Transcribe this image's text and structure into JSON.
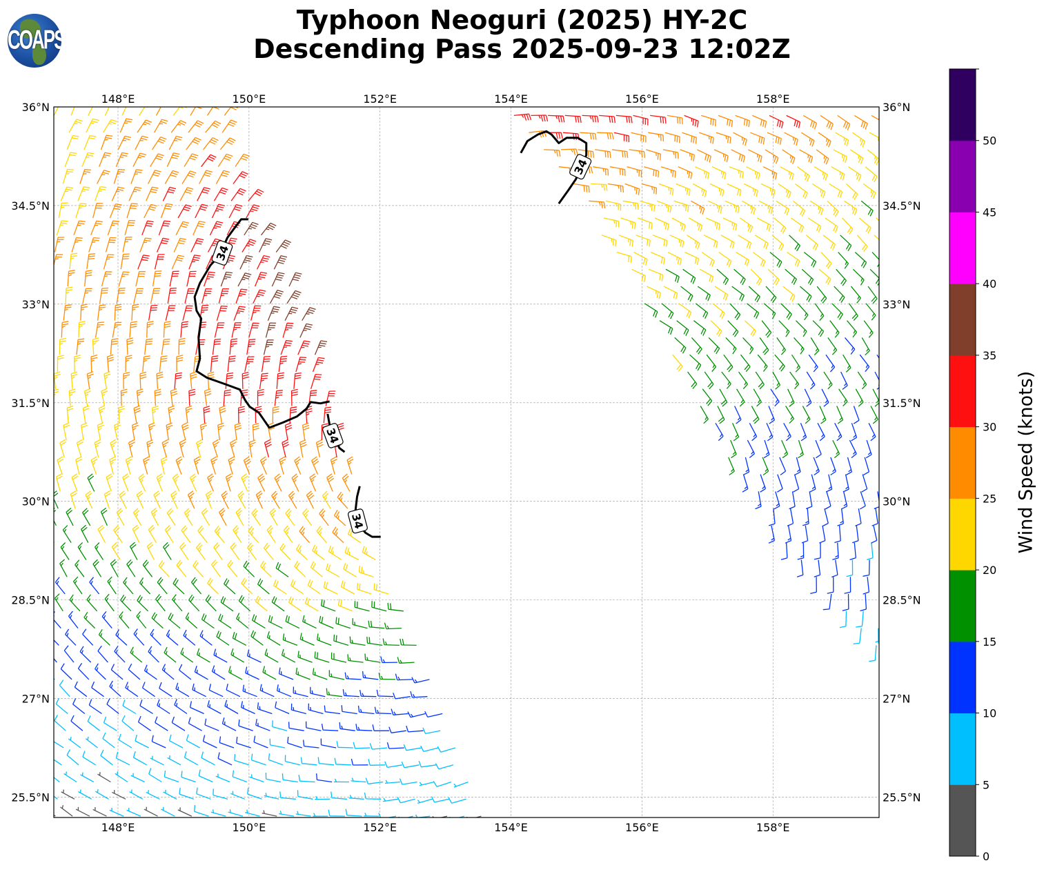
{
  "header": {
    "title_line1": "Typhoon Neoguri (2025) HY-2C",
    "title_line2": "Descending Pass 2025-09-23 12:02Z",
    "logo_text": "COAPS"
  },
  "chart_data": {
    "type": "wind-barb-map",
    "title": "Typhoon Neoguri (2025) HY-2C Descending Pass 2025-09-23 12:02Z",
    "xlim": [
      147.02,
      159.62
    ],
    "ylim": [
      25.19,
      36.0
    ],
    "grid": true,
    "x_ticks": [
      {
        "value": 148,
        "label": "148°E"
      },
      {
        "value": 150,
        "label": "150°E"
      },
      {
        "value": 152,
        "label": "152°E"
      },
      {
        "value": 154,
        "label": "154°E"
      },
      {
        "value": 156,
        "label": "156°E"
      },
      {
        "value": 158,
        "label": "158°E"
      }
    ],
    "y_ticks": [
      {
        "value": 36,
        "label": "36°N"
      },
      {
        "value": 34.5,
        "label": "34.5°N"
      },
      {
        "value": 33,
        "label": "33°N"
      },
      {
        "value": 31.5,
        "label": "31.5°N"
      },
      {
        "value": 30,
        "label": "30°N"
      },
      {
        "value": 28.5,
        "label": "28.5°N"
      },
      {
        "value": 27,
        "label": "27°N"
      },
      {
        "value": 25.5,
        "label": "25.5°N"
      }
    ],
    "colorbar": {
      "label": "Wind Speed (knots)",
      "bounds": [
        0,
        5,
        10,
        15,
        20,
        25,
        30,
        35,
        40,
        45,
        50,
        55
      ],
      "tick_labels": [
        "0",
        "5",
        "10",
        "15",
        "20",
        "25",
        "30",
        "35",
        "40",
        "45",
        "50"
      ],
      "colors": [
        "#555555",
        "#00bfff",
        "#0033ff",
        "#009000",
        "#ffd700",
        "#ff8c00",
        "#ff1010",
        "#7f3f2a",
        "#ff00ff",
        "#8800b0",
        "#2f0060"
      ]
    },
    "swaths": [
      {
        "name": "west-swath",
        "polygon": [
          [
            147.0,
            36.0
          ],
          [
            149.6,
            36.0
          ],
          [
            150.1,
            34.5
          ],
          [
            150.8,
            33.0
          ],
          [
            151.25,
            31.5
          ],
          [
            151.7,
            30.0
          ],
          [
            152.3,
            28.5
          ],
          [
            152.9,
            27.0
          ],
          [
            153.5,
            25.7
          ],
          [
            153.6,
            25.19
          ],
          [
            147.0,
            25.19
          ]
        ],
        "speed_model": {
          "peak": 40,
          "center": [
            151.3,
            33.3
          ],
          "decay": 3.6,
          "lat_weight": 1.15
        },
        "circulation_center": [
          153.2,
          30.5
        ]
      },
      {
        "name": "east-swath",
        "polygon": [
          [
            153.67,
            36.0
          ],
          [
            159.62,
            36.0
          ],
          [
            159.62,
            27.66
          ],
          [
            158.7,
            28.5
          ],
          [
            157.7,
            30.0
          ],
          [
            156.8,
            31.5
          ],
          [
            156.0,
            33.0
          ],
          [
            155.1,
            34.5
          ]
        ],
        "speed_model": {
          "peak": 33,
          "ref_lat": 35.8,
          "ref_lon": 155,
          "lat_coef": 7,
          "lon_coef": 1
        },
        "circulation_center": [
          153.2,
          30.5
        ]
      }
    ],
    "contours": [
      {
        "level": 34,
        "label": "34",
        "points": [
          [
            149.99,
            34.29
          ],
          [
            149.88,
            34.29
          ],
          [
            149.78,
            34.16
          ],
          [
            149.67,
            34.01
          ],
          [
            149.55,
            33.74
          ],
          [
            149.41,
            33.59
          ],
          [
            149.25,
            33.32
          ],
          [
            149.17,
            33.11
          ],
          [
            149.2,
            32.9
          ],
          [
            149.27,
            32.78
          ],
          [
            149.23,
            32.48
          ],
          [
            149.25,
            32.17
          ],
          [
            149.2,
            31.98
          ],
          [
            149.36,
            31.88
          ],
          [
            149.67,
            31.77
          ],
          [
            149.86,
            31.7
          ],
          [
            149.94,
            31.54
          ],
          [
            150.01,
            31.44
          ],
          [
            150.15,
            31.35
          ],
          [
            150.31,
            31.12
          ],
          [
            150.52,
            31.2
          ],
          [
            150.73,
            31.29
          ],
          [
            150.88,
            31.41
          ],
          [
            150.94,
            31.51
          ],
          [
            151.09,
            31.49
          ],
          [
            151.23,
            31.52
          ]
        ],
        "label_at": [
          149.59,
          33.78
        ],
        "label_angle": -70
      },
      {
        "level": 34,
        "label": "34",
        "points": [
          [
            151.2,
            31.33
          ],
          [
            151.23,
            31.17
          ],
          [
            151.31,
            30.96
          ],
          [
            151.38,
            30.81
          ],
          [
            151.46,
            30.75
          ]
        ],
        "label_at": [
          151.28,
          31.0
        ],
        "label_angle": 70
      },
      {
        "level": 34,
        "label": "34",
        "points": [
          [
            151.69,
            30.23
          ],
          [
            151.65,
            30.07
          ],
          [
            151.62,
            29.81
          ],
          [
            151.67,
            29.65
          ],
          [
            151.78,
            29.52
          ],
          [
            151.88,
            29.46
          ],
          [
            152.01,
            29.46
          ]
        ],
        "label_at": [
          151.66,
          29.7
        ],
        "label_angle": 75
      },
      {
        "level": 34,
        "label": "34",
        "points": [
          [
            154.15,
            35.3
          ],
          [
            154.25,
            35.48
          ],
          [
            154.41,
            35.58
          ],
          [
            154.54,
            35.63
          ],
          [
            154.62,
            35.58
          ],
          [
            154.73,
            35.45
          ],
          [
            154.85,
            35.53
          ],
          [
            155.02,
            35.53
          ],
          [
            155.15,
            35.45
          ],
          [
            155.15,
            35.27
          ],
          [
            155.09,
            35.11
          ],
          [
            154.99,
            34.9
          ],
          [
            154.88,
            34.74
          ],
          [
            154.73,
            34.53
          ]
        ],
        "label_at": [
          155.06,
          35.09
        ],
        "label_angle": -65
      }
    ],
    "barb_spacing_deg": 0.26
  }
}
